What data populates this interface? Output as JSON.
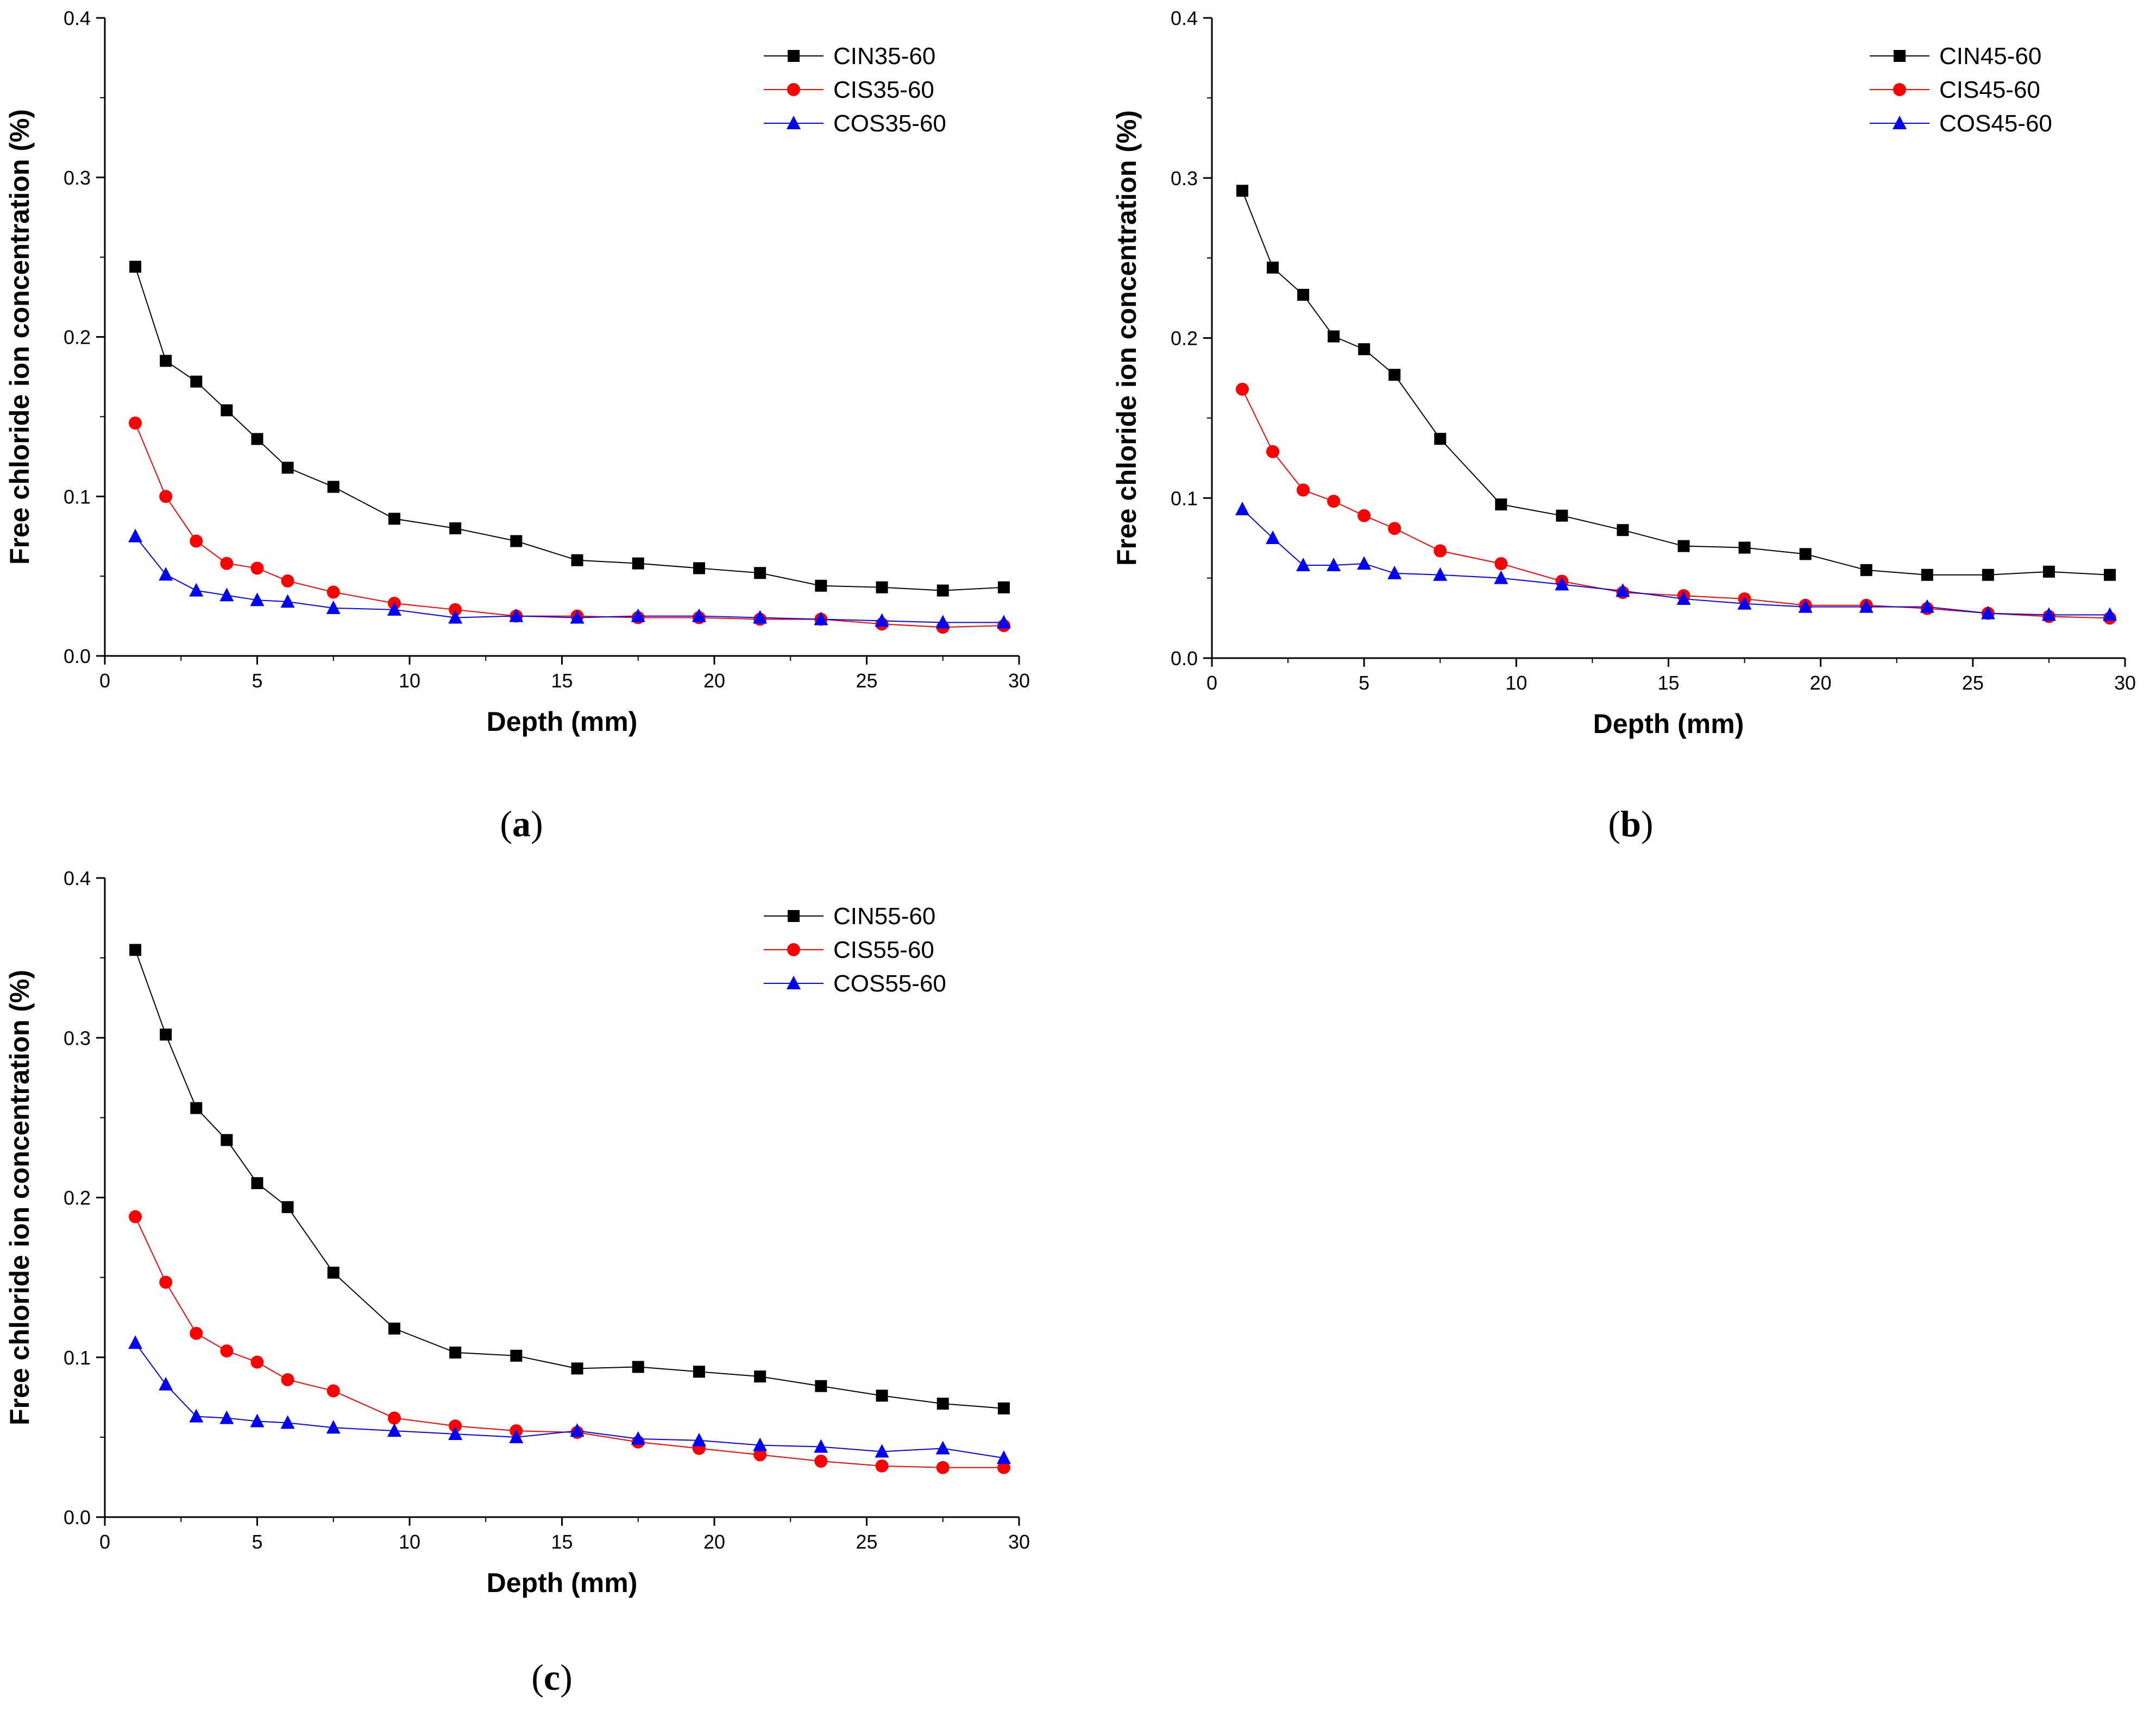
{
  "colors": {
    "CIN": "#000000",
    "CIS": "#ff0000",
    "COS": "#0000ff",
    "axis": "#000000",
    "background": "#ffffff"
  },
  "chart_data": [
    {
      "id": "a",
      "panel_label": "a",
      "type": "line",
      "xlabel": "Depth (mm)",
      "ylabel": "Free chloride ion concentration (%)",
      "xlim": [
        0,
        30
      ],
      "ylim": [
        0,
        0.4
      ],
      "x_ticks": [
        "0",
        "5",
        "10",
        "15",
        "20",
        "25",
        "30"
      ],
      "y_ticks": [
        "0.0",
        "0.1",
        "0.2",
        "0.3",
        "0.4"
      ],
      "legend_position": "top-right",
      "grid": false,
      "x": [
        1,
        2,
        3,
        4,
        5,
        6,
        7.5,
        9.5,
        11.5,
        13.5,
        15.5,
        17.5,
        19.5,
        21.5,
        23.5,
        25.5,
        27.5,
        29.5
      ],
      "series": [
        {
          "name": "CIN35-60",
          "marker": "square",
          "color": "#000000",
          "values": [
            0.244,
            0.185,
            0.172,
            0.154,
            0.136,
            0.118,
            0.106,
            0.086,
            0.08,
            0.072,
            0.06,
            0.058,
            0.055,
            0.052,
            0.044,
            0.043,
            0.041,
            0.043
          ]
        },
        {
          "name": "CIS35-60",
          "marker": "circle",
          "color": "#ff0000",
          "values": [
            0.146,
            0.1,
            0.072,
            0.058,
            0.055,
            0.047,
            0.04,
            0.033,
            0.029,
            0.025,
            0.025,
            0.024,
            0.024,
            0.023,
            0.023,
            0.02,
            0.018,
            0.019
          ]
        },
        {
          "name": "COS35-60",
          "marker": "triangle",
          "color": "#0000ff",
          "values": [
            0.075,
            0.051,
            0.041,
            0.038,
            0.035,
            0.034,
            0.03,
            0.029,
            0.024,
            0.025,
            0.024,
            0.025,
            0.025,
            0.024,
            0.023,
            0.022,
            0.021,
            0.021
          ]
        }
      ]
    },
    {
      "id": "b",
      "panel_label": "b",
      "type": "line",
      "xlabel": "Depth (mm)",
      "ylabel": "Free chloride ion concentration (%)",
      "xlim": [
        0,
        30
      ],
      "ylim": [
        0,
        0.4
      ],
      "x_ticks": [
        "0",
        "5",
        "10",
        "15",
        "20",
        "25",
        "30"
      ],
      "y_ticks": [
        "0.0",
        "0.1",
        "0.2",
        "0.3",
        "0.4"
      ],
      "legend_position": "top-right",
      "grid": false,
      "x": [
        1,
        2,
        3,
        4,
        5,
        6,
        7.5,
        9.5,
        11.5,
        13.5,
        15.5,
        17.5,
        19.5,
        21.5,
        23.5,
        25.5,
        27.5,
        29.5
      ],
      "series": [
        {
          "name": "CIN45-60",
          "marker": "square",
          "color": "#000000",
          "values": [
            0.292,
            0.244,
            0.227,
            0.201,
            0.193,
            0.177,
            0.137,
            0.096,
            0.089,
            0.08,
            0.07,
            0.069,
            0.065,
            0.055,
            0.052,
            0.052,
            0.054,
            0.052
          ]
        },
        {
          "name": "CIS45-60",
          "marker": "circle",
          "color": "#ff0000",
          "values": [
            0.168,
            0.129,
            0.105,
            0.098,
            0.089,
            0.081,
            0.067,
            0.059,
            0.048,
            0.041,
            0.039,
            0.037,
            0.033,
            0.033,
            0.031,
            0.028,
            0.026,
            0.025
          ]
        },
        {
          "name": "COS45-60",
          "marker": "triangle",
          "color": "#0000ff",
          "values": [
            0.093,
            0.075,
            0.058,
            0.058,
            0.059,
            0.053,
            0.052,
            0.05,
            0.046,
            0.042,
            0.037,
            0.034,
            0.032,
            0.032,
            0.032,
            0.028,
            0.027,
            0.027
          ]
        }
      ]
    },
    {
      "id": "c",
      "panel_label": "c",
      "type": "line",
      "xlabel": "Depth (mm)",
      "ylabel": "Free chloride ion concentration (%)",
      "xlim": [
        0,
        30
      ],
      "ylim": [
        0,
        0.4
      ],
      "x_ticks": [
        "0",
        "5",
        "10",
        "15",
        "20",
        "25",
        "30"
      ],
      "y_ticks": [
        "0.0",
        "0.1",
        "0.2",
        "0.3",
        "0.4"
      ],
      "legend_position": "top-right",
      "grid": false,
      "x": [
        1,
        2,
        3,
        4,
        5,
        6,
        7.5,
        9.5,
        11.5,
        13.5,
        15.5,
        17.5,
        19.5,
        21.5,
        23.5,
        25.5,
        27.5,
        29.5
      ],
      "series": [
        {
          "name": "CIN55-60",
          "marker": "square",
          "color": "#000000",
          "values": [
            0.355,
            0.302,
            0.256,
            0.236,
            0.209,
            0.194,
            0.153,
            0.118,
            0.103,
            0.101,
            0.093,
            0.094,
            0.091,
            0.088,
            0.082,
            0.076,
            0.071,
            0.068
          ]
        },
        {
          "name": "CIS55-60",
          "marker": "circle",
          "color": "#ff0000",
          "values": [
            0.188,
            0.147,
            0.115,
            0.104,
            0.097,
            0.086,
            0.079,
            0.062,
            0.057,
            0.054,
            0.053,
            0.047,
            0.043,
            0.039,
            0.035,
            0.032,
            0.031,
            0.031
          ]
        },
        {
          "name": "COS55-60",
          "marker": "triangle",
          "color": "#0000ff",
          "values": [
            0.109,
            0.083,
            0.063,
            0.062,
            0.06,
            0.059,
            0.056,
            0.054,
            0.052,
            0.05,
            0.054,
            0.049,
            0.048,
            0.045,
            0.044,
            0.041,
            0.043,
            0.037
          ]
        }
      ]
    }
  ]
}
